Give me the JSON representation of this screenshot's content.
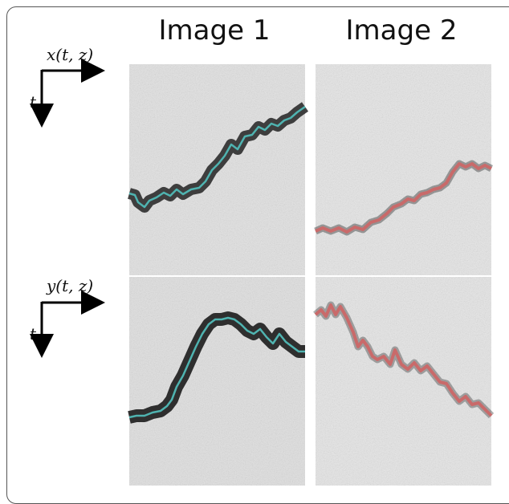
{
  "titles": {
    "image1": "Image 1",
    "image2": "Image 2"
  },
  "axes": {
    "top": {
      "horizontal_label": "x(t, z)",
      "vertical_label": "t"
    },
    "bottom": {
      "horizontal_label": "y(t, z)",
      "vertical_label": "t"
    }
  },
  "colors": {
    "trace_image1": "#4fb3b0",
    "trace_image2": "#c96a6a",
    "background": "#d8d8d8"
  }
}
